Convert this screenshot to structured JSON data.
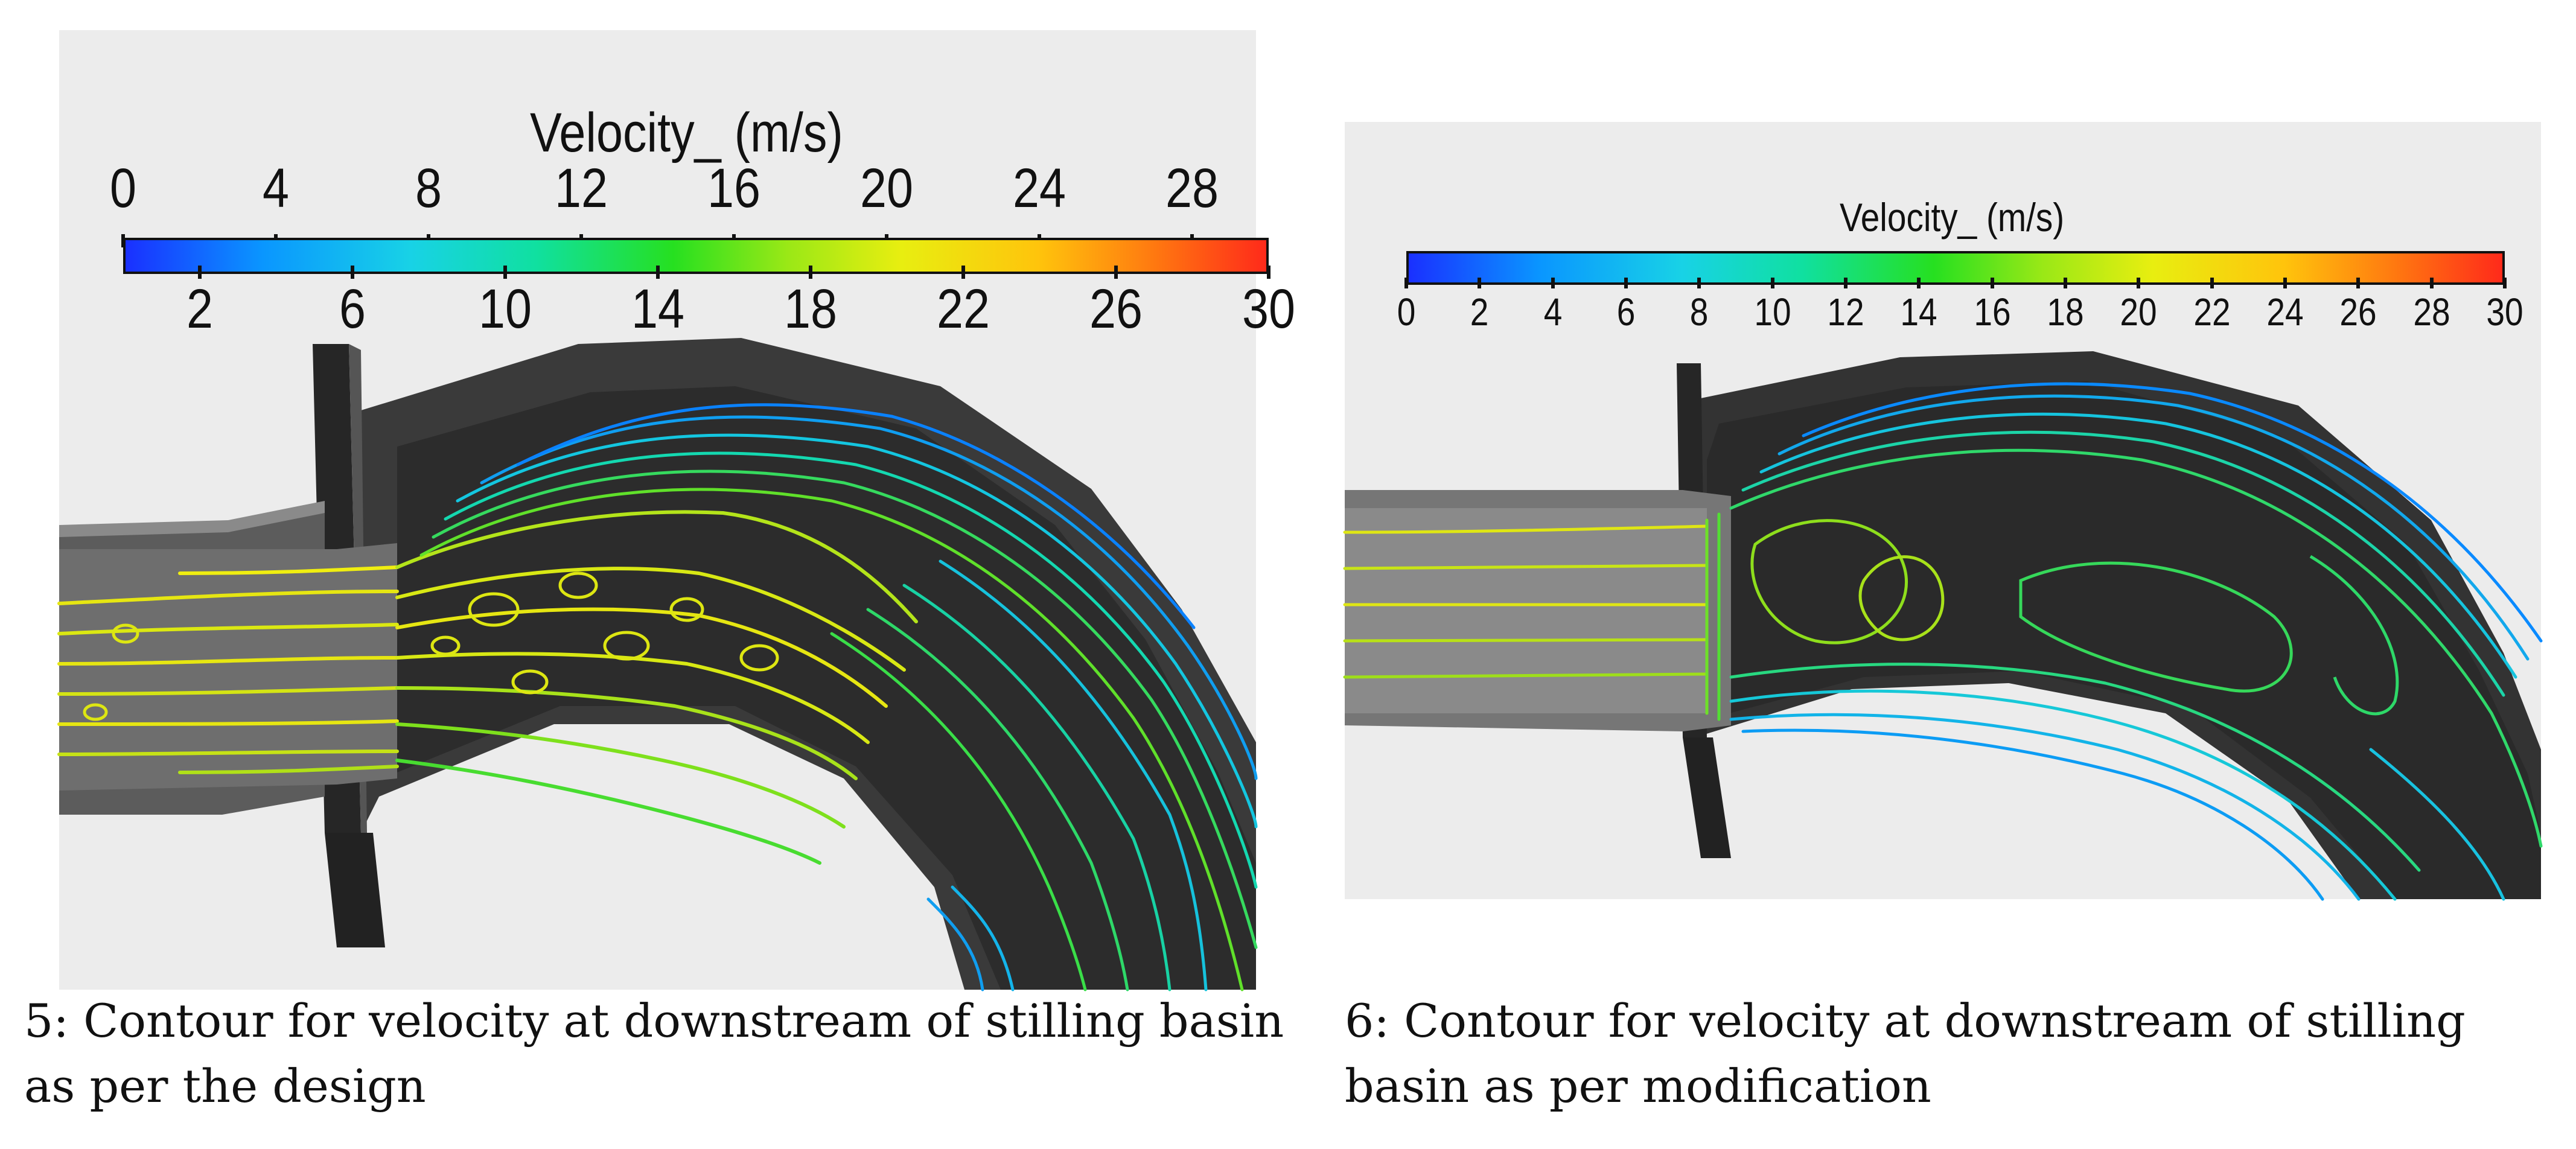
{
  "figure_a": {
    "legend_title": "Velocity_ (m/s)",
    "ticks_top": [
      "0",
      "4",
      "8",
      "12",
      "16",
      "20",
      "24",
      "28"
    ],
    "ticks_bottom": [
      "2",
      "6",
      "10",
      "14",
      "18",
      "22",
      "26",
      "30"
    ],
    "scale_min": 0,
    "scale_max": 30,
    "caption": "5: Contour for velocity at downstream of stilling basin as per the design"
  },
  "figure_b": {
    "legend_title": "Velocity_ (m/s)",
    "ticks": [
      "0",
      "2",
      "4",
      "6",
      "8",
      "10",
      "12",
      "14",
      "16",
      "18",
      "20",
      "22",
      "24",
      "26",
      "28",
      "30"
    ],
    "scale_min": 0,
    "scale_max": 30,
    "caption": "6: Contour for velocity at downstream of stilling basin as per modification"
  },
  "colors": {
    "panel_background": "#ececec",
    "basin_dark": "#2f2f2f",
    "channel_gray": "#6a6a6a",
    "scale_low": "#1a30ff",
    "scale_mid": "#26e020",
    "scale_high": "#ff2a1a"
  }
}
